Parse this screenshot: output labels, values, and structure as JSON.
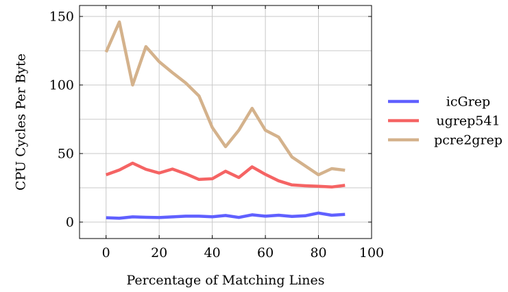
{
  "chart_data": {
    "type": "line",
    "xlabel": "Percentage of Matching Lines",
    "ylabel": "CPU Cycles Per Byte",
    "xlim": [
      -10,
      100
    ],
    "ylim": [
      -12,
      158
    ],
    "x_ticks": [
      0,
      20,
      40,
      60,
      80,
      100
    ],
    "y_ticks": [
      0,
      50,
      100,
      150
    ],
    "x_grid": [
      0,
      20,
      40,
      60,
      80,
      100
    ],
    "y_grid": [
      0,
      25,
      50,
      75,
      100,
      125,
      150
    ],
    "grid": true,
    "legend_position": "right",
    "x": [
      0,
      5,
      10,
      15,
      20,
      25,
      30,
      35,
      40,
      45,
      50,
      55,
      60,
      65,
      70,
      75,
      80,
      85,
      90
    ],
    "series": [
      {
        "name": "icGrep",
        "color": "#6060ff",
        "values": [
          3.2,
          2.8,
          3.8,
          3.5,
          3.3,
          3.8,
          4.3,
          4.3,
          3.9,
          4.8,
          3.4,
          5.3,
          4.3,
          5.0,
          4.1,
          4.6,
          6.6,
          5.0,
          5.6
        ]
      },
      {
        "name": "ugrep541",
        "color": "#f56464",
        "values": [
          34.5,
          38.0,
          43.0,
          38.5,
          35.8,
          38.7,
          35.2,
          31.1,
          31.6,
          37.1,
          32.5,
          40.3,
          34.8,
          30.1,
          27.1,
          26.5,
          26.1,
          25.6,
          26.8
        ]
      },
      {
        "name": "pcre2grep",
        "color": "#d4b28c",
        "values": [
          124.0,
          146.0,
          100.0,
          128.0,
          117.0,
          109.0,
          101.5,
          92.0,
          69.0,
          55.0,
          67.0,
          83.0,
          67.0,
          62.0,
          47.5,
          41.0,
          34.5,
          39.0,
          37.8
        ]
      }
    ]
  }
}
